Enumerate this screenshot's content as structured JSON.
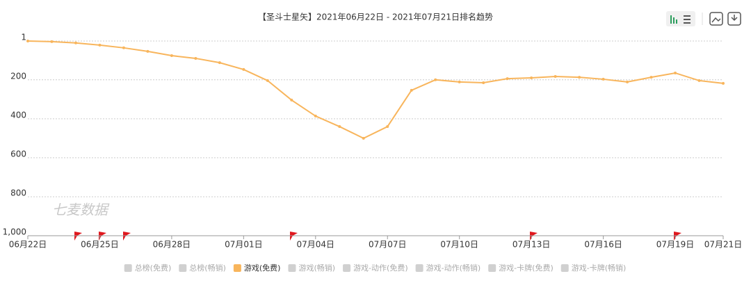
{
  "chart_data": {
    "type": "line",
    "title": "【圣斗士星矢】2021年06月22日 - 2021年07月21日排名趋势",
    "watermark": "七麦数据",
    "categories": [
      "06月22日",
      null,
      null,
      "06月25日",
      null,
      null,
      "06月28日",
      null,
      null,
      "07月01日",
      null,
      null,
      "07月04日",
      null,
      null,
      "07月07日",
      null,
      null,
      "07月10日",
      null,
      null,
      "07月13日",
      null,
      null,
      "07月16日",
      null,
      null,
      "07月19日",
      null,
      "07月21日"
    ],
    "series": [
      {
        "name": "游戏(免费)",
        "color": "#f8b55c",
        "values": [
          1,
          4,
          11,
          22,
          36,
          54,
          76,
          90,
          112,
          147,
          204,
          304,
          386,
          440,
          500,
          440,
          254,
          200,
          211,
          215,
          194,
          190,
          183,
          187,
          197,
          211,
          187,
          165,
          204,
          218
        ]
      }
    ],
    "legend_inactive_before": [
      "总榜(免费)",
      "总榜(畅销)"
    ],
    "legend_inactive_after": [
      "游戏(畅销)",
      "游戏-动作(免费)",
      "游戏-动作(畅销)",
      "游戏-卡牌(免费)",
      "游戏-卡牌(畅销)"
    ],
    "inactive_color": "#d0d0d0",
    "ylim": [
      1,
      1000
    ],
    "y_reversed": true,
    "yticks": [
      1,
      200,
      400,
      600,
      800,
      {
        "value": 1000,
        "label": "1,000"
      }
    ],
    "grid": true
  }
}
